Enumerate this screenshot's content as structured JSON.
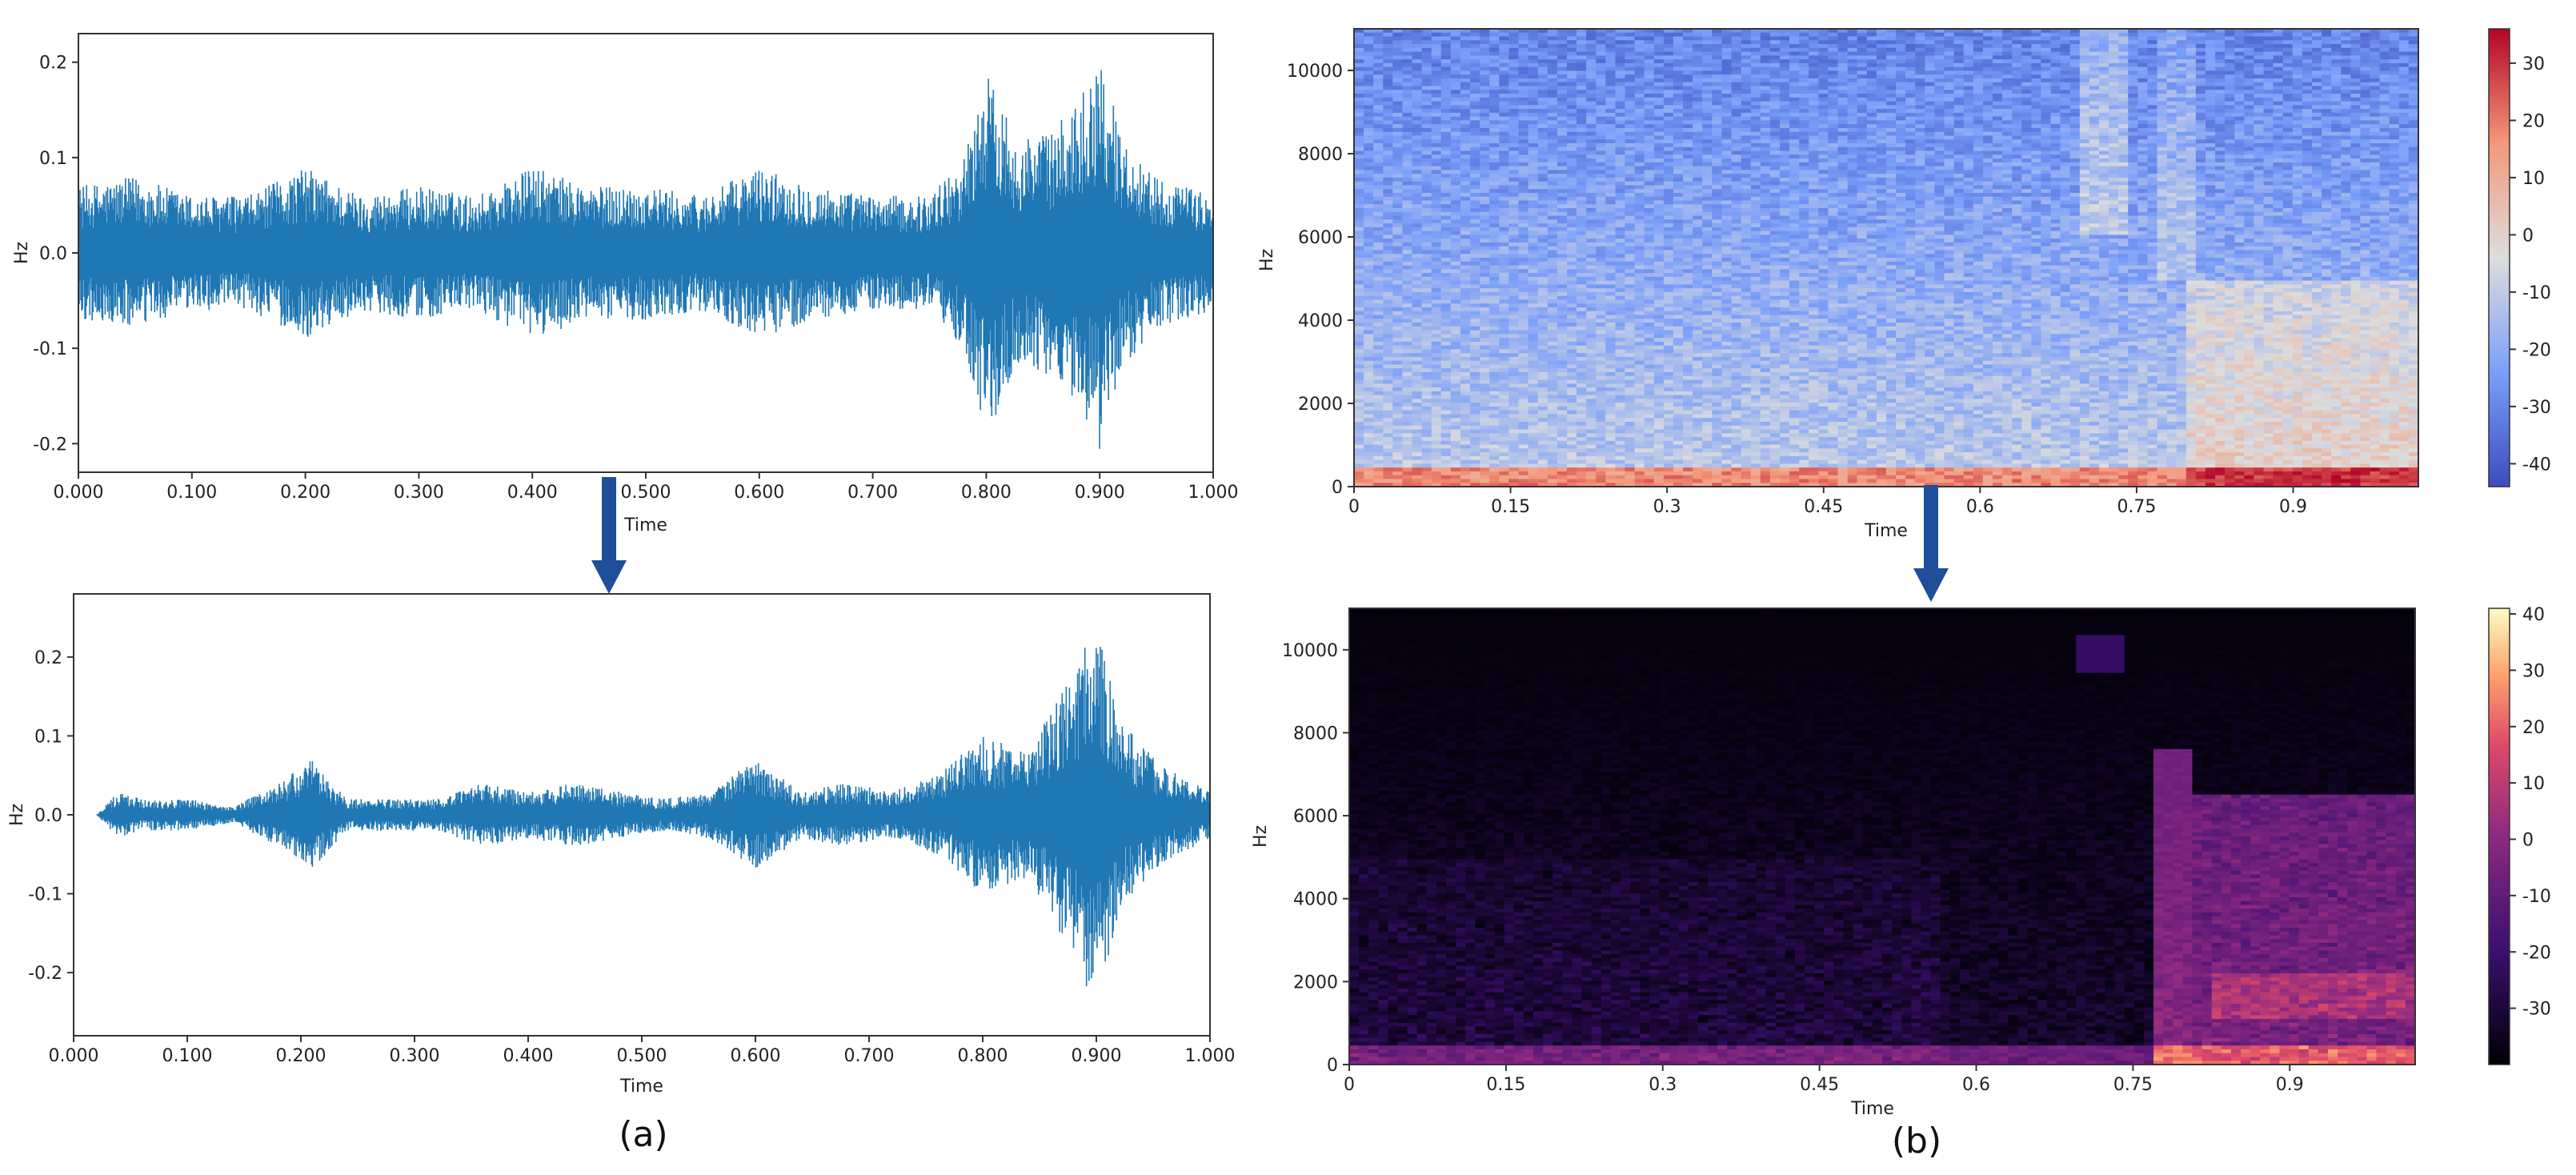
{
  "captions": {
    "a": "(a)",
    "b": "(b)"
  },
  "colors": {
    "waveform": "#1f77b4",
    "arrow": "#1f4e9a",
    "axis": "#333333",
    "coolwarm_low": "#3b4cc0",
    "coolwarm_mid": "#dddddd",
    "coolwarm_high": "#b40426",
    "magma_low": "#000004",
    "magma_high": "#fcfdbf"
  },
  "chart_data": [
    {
      "id": "waveform-original",
      "type": "line",
      "xlabel": "Time",
      "ylabel": "Hz",
      "xlim": [
        0.0,
        1.0
      ],
      "ylim": [
        -0.23,
        0.23
      ],
      "xticks": [
        "0.000",
        "0.100",
        "0.200",
        "0.300",
        "0.400",
        "0.500",
        "0.600",
        "0.700",
        "0.800",
        "0.900",
        "1.000"
      ],
      "yticks": [
        "0.2",
        "0.1",
        "0.0",
        "-0.1",
        "-0.2"
      ],
      "ytick_values": [
        0.2,
        0.1,
        0.0,
        -0.1,
        -0.2
      ],
      "envelope": {
        "x": [
          0.0,
          0.05,
          0.1,
          0.15,
          0.2,
          0.25,
          0.3,
          0.35,
          0.4,
          0.45,
          0.5,
          0.55,
          0.6,
          0.65,
          0.7,
          0.75,
          0.78,
          0.8,
          0.83,
          0.86,
          0.88,
          0.9,
          0.92,
          0.95,
          1.0
        ],
        "y": [
          0.07,
          0.08,
          0.06,
          0.06,
          0.09,
          0.06,
          0.07,
          0.06,
          0.09,
          0.07,
          0.07,
          0.06,
          0.09,
          0.07,
          0.06,
          0.06,
          0.1,
          0.19,
          0.12,
          0.13,
          0.16,
          0.21,
          0.12,
          0.08,
          0.06
        ]
      }
    },
    {
      "id": "waveform-processed",
      "type": "line",
      "xlabel": "Time",
      "ylabel": "Hz",
      "xlim": [
        0.0,
        1.0
      ],
      "ylim": [
        -0.28,
        0.28
      ],
      "xticks": [
        "0.000",
        "0.100",
        "0.200",
        "0.300",
        "0.400",
        "0.500",
        "0.600",
        "0.700",
        "0.800",
        "0.900",
        "1.000"
      ],
      "yticks": [
        "0.2",
        "0.1",
        "0.0",
        "-0.1",
        "-0.2"
      ],
      "ytick_values": [
        0.2,
        0.1,
        0.0,
        -0.1,
        -0.2
      ],
      "envelope": {
        "x": [
          0.0,
          0.02,
          0.04,
          0.06,
          0.1,
          0.14,
          0.18,
          0.21,
          0.24,
          0.28,
          0.32,
          0.36,
          0.4,
          0.44,
          0.48,
          0.52,
          0.56,
          0.6,
          0.64,
          0.68,
          0.72,
          0.76,
          0.8,
          0.84,
          0.88,
          0.9,
          0.92,
          0.96,
          1.0
        ],
        "y": [
          0.0,
          0.0,
          0.03,
          0.02,
          0.02,
          0.01,
          0.04,
          0.07,
          0.02,
          0.02,
          0.02,
          0.04,
          0.03,
          0.04,
          0.03,
          0.02,
          0.03,
          0.07,
          0.03,
          0.04,
          0.03,
          0.05,
          0.1,
          0.08,
          0.18,
          0.25,
          0.12,
          0.06,
          0.03
        ]
      }
    },
    {
      "id": "spectrogram-original",
      "type": "heatmap",
      "colormap": "coolwarm",
      "xlabel": "Time",
      "ylabel": "Hz",
      "xlim": [
        0,
        1.02
      ],
      "ylim": [
        0,
        11000
      ],
      "xticks": [
        "0",
        "0.15",
        "0.3",
        "0.45",
        "0.6",
        "0.75",
        "0.9"
      ],
      "xtick_values": [
        0,
        0.15,
        0.3,
        0.45,
        0.6,
        0.75,
        0.9
      ],
      "yticks": [
        "10000",
        "8000",
        "6000",
        "4000",
        "2000",
        "0"
      ],
      "ytick_values": [
        10000,
        8000,
        6000,
        4000,
        2000,
        0
      ],
      "colorbar": {
        "range": [
          -44,
          36
        ],
        "ticks": [
          "30",
          "20",
          "10",
          "0",
          "-10",
          "-20",
          "-30",
          "-40"
        ],
        "tick_values": [
          30,
          20,
          10,
          0,
          -10,
          -20,
          -30,
          -40
        ]
      }
    },
    {
      "id": "spectrogram-processed",
      "type": "heatmap",
      "colormap": "magma",
      "xlabel": "Time",
      "ylabel": "Hz",
      "xlim": [
        0,
        1.02
      ],
      "ylim": [
        0,
        11000
      ],
      "xticks": [
        "0",
        "0.15",
        "0.3",
        "0.45",
        "0.6",
        "0.75",
        "0.9"
      ],
      "xtick_values": [
        0,
        0.15,
        0.3,
        0.45,
        0.6,
        0.75,
        0.9
      ],
      "yticks": [
        "10000",
        "8000",
        "6000",
        "4000",
        "2000",
        "0"
      ],
      "ytick_values": [
        10000,
        8000,
        6000,
        4000,
        2000,
        0
      ],
      "colorbar": {
        "range": [
          -40,
          41
        ],
        "ticks": [
          "40",
          "30",
          "20",
          "10",
          "0",
          "-10",
          "-20",
          "-30"
        ],
        "tick_values": [
          40,
          30,
          20,
          10,
          0,
          -10,
          -20,
          -30
        ]
      }
    }
  ]
}
